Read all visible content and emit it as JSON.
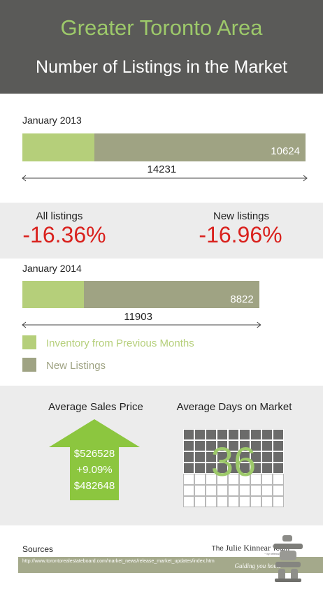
{
  "header": {
    "title": "Greater Toronto Area",
    "subtitle": "Number of Listings in the Market"
  },
  "chart_data": [
    {
      "type": "bar",
      "orientation": "horizontal-stacked",
      "periods": [
        {
          "label": "January 2013",
          "total": 14231,
          "new_listings": 10624
        },
        {
          "label": "January 2014",
          "total": 11903,
          "new_listings": 8822
        }
      ],
      "legend": [
        {
          "label": "Inventory from Previous Months",
          "color": "#b5cf7a"
        },
        {
          "label": "New Listings",
          "color": "#9fa383"
        }
      ]
    }
  ],
  "totals": {
    "p0": "14231",
    "p1": "11903"
  },
  "new_labels": {
    "p0": "10624",
    "p1": "8822"
  },
  "changes": {
    "all": {
      "label": "All listings",
      "value": "-16.36%"
    },
    "new": {
      "label": "New listings",
      "value": "-16.96%"
    }
  },
  "price": {
    "label": "Average Sales Price",
    "current": "$526528",
    "change": "+9.09%",
    "previous": "$482648",
    "arrow_color": "#8cc63f"
  },
  "days": {
    "label": "Average Days on Market",
    "value": "36",
    "filled": 36,
    "total": 63
  },
  "sources": {
    "title": "Sources",
    "url": "http://www.torontorealestateboard.com/market_news/release_market_updates/index.htm"
  },
  "brand": {
    "prefix": "The",
    "name": "Julie Kinnear",
    "suffix": "Team",
    "sub": "~ by referral only™",
    "tagline": "Guiding you home"
  }
}
